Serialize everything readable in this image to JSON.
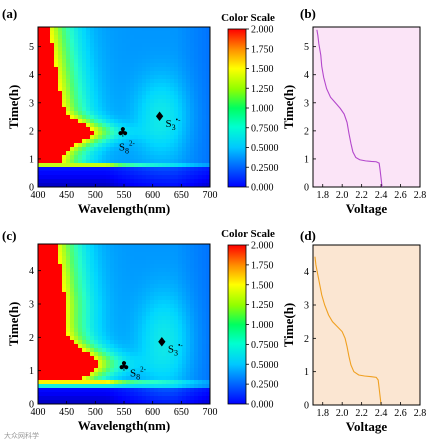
{
  "watermark": "大众网科学",
  "chart_data": [
    {
      "id": "a",
      "type": "heatmap",
      "panel_label": "(a)",
      "xlabel": "Wavelength(nm)",
      "ylabel": "Time(h)",
      "xlim": [
        400,
        700
      ],
      "ylim": [
        0,
        5.7
      ],
      "x_ticks": [
        "400",
        "450",
        "500",
        "550",
        "600",
        "650",
        "700"
      ],
      "y_ticks": [
        "0",
        "1",
        "2",
        "3",
        "4",
        "5"
      ],
      "colorbar": {
        "title": "Color Scale",
        "range": [
          0,
          2
        ],
        "ticks": [
          "0.000",
          "0.2500",
          "0.5000",
          "0.7500",
          "1.000",
          "1.250",
          "1.500",
          "1.750",
          "2.000"
        ]
      },
      "annotations": [
        {
          "symbol": "♣",
          "label": "S8",
          "sup": "2-",
          "x": 548,
          "y": 1.95,
          "label_below": true
        },
        {
          "symbol": "♦",
          "label": "S3",
          "sup": "•-",
          "x": 612,
          "y": 2.5,
          "label_below": false
        }
      ]
    },
    {
      "id": "b",
      "type": "line",
      "panel_label": "(b)",
      "xlabel": "Voltage",
      "ylabel": "Time(h)",
      "xlim": [
        1.7,
        2.8
      ],
      "ylim": [
        0,
        5.7
      ],
      "x_ticks": [
        "1.8",
        "2.0",
        "2.2",
        "2.4",
        "2.6",
        "2.8"
      ],
      "y_ticks": [
        "0",
        "1",
        "2",
        "3",
        "4",
        "5"
      ],
      "background": "#fbe4f7",
      "line_color": "#b347cc",
      "series": [
        {
          "x": [
            1.74,
            1.75,
            1.76,
            1.78,
            1.79,
            1.81,
            1.84,
            1.88,
            1.93,
            1.98,
            2.02,
            2.05,
            2.07,
            2.09,
            2.11,
            2.14,
            2.18,
            2.24,
            2.3,
            2.35,
            2.38,
            2.39,
            2.4,
            2.41
          ],
          "y": [
            5.6,
            5.4,
            5.1,
            4.7,
            4.3,
            3.9,
            3.5,
            3.2,
            3.0,
            2.8,
            2.6,
            2.3,
            1.9,
            1.55,
            1.25,
            1.05,
            0.97,
            0.93,
            0.91,
            0.9,
            0.85,
            0.6,
            0.3,
            0.0
          ]
        }
      ]
    },
    {
      "id": "c",
      "type": "heatmap",
      "panel_label": "(c)",
      "xlabel": "Wavelength(nm)",
      "ylabel": "Time(h)",
      "xlim": [
        400,
        700
      ],
      "ylim": [
        0,
        4.8
      ],
      "x_ticks": [
        "400",
        "450",
        "500",
        "550",
        "600",
        "650",
        "700"
      ],
      "y_ticks": [
        "0",
        "1",
        "2",
        "3",
        "4"
      ],
      "colorbar": {
        "title": "Color Scale",
        "range": [
          0,
          2
        ],
        "ticks": [
          "0.000",
          "0.2500",
          "0.5000",
          "0.7500",
          "1.000",
          "1.250",
          "1.500",
          "1.750",
          "2.000"
        ]
      },
      "annotations": [
        {
          "symbol": "♣",
          "label": "S8",
          "sup": "2-",
          "x": 550,
          "y": 1.12,
          "label_below": false
        },
        {
          "symbol": "♦",
          "label": "S3",
          "sup": "•-",
          "x": 616,
          "y": 1.85,
          "label_below": false
        }
      ]
    },
    {
      "id": "d",
      "type": "line",
      "panel_label": "(d)",
      "xlabel": "Voltage",
      "ylabel": "Time(h)",
      "xlim": [
        1.7,
        2.8
      ],
      "ylim": [
        0,
        4.8
      ],
      "x_ticks": [
        "1.8",
        "2.0",
        "2.2",
        "2.4",
        "2.6",
        "2.8"
      ],
      "y_ticks": [
        "0",
        "1",
        "2",
        "3",
        "4"
      ],
      "background": "#fbe6d2",
      "line_color": "#f0a020",
      "series": [
        {
          "x": [
            1.72,
            1.73,
            1.75,
            1.77,
            1.79,
            1.82,
            1.86,
            1.9,
            1.95,
            2.0,
            2.03,
            2.05,
            2.07,
            2.09,
            2.12,
            2.17,
            2.23,
            2.3,
            2.35,
            2.37,
            2.38,
            2.39,
            2.4
          ],
          "y": [
            4.45,
            4.2,
            3.9,
            3.6,
            3.3,
            3.0,
            2.7,
            2.5,
            2.35,
            2.2,
            2.0,
            1.75,
            1.45,
            1.2,
            1.0,
            0.9,
            0.87,
            0.85,
            0.83,
            0.75,
            0.5,
            0.25,
            0.0
          ]
        }
      ]
    }
  ]
}
